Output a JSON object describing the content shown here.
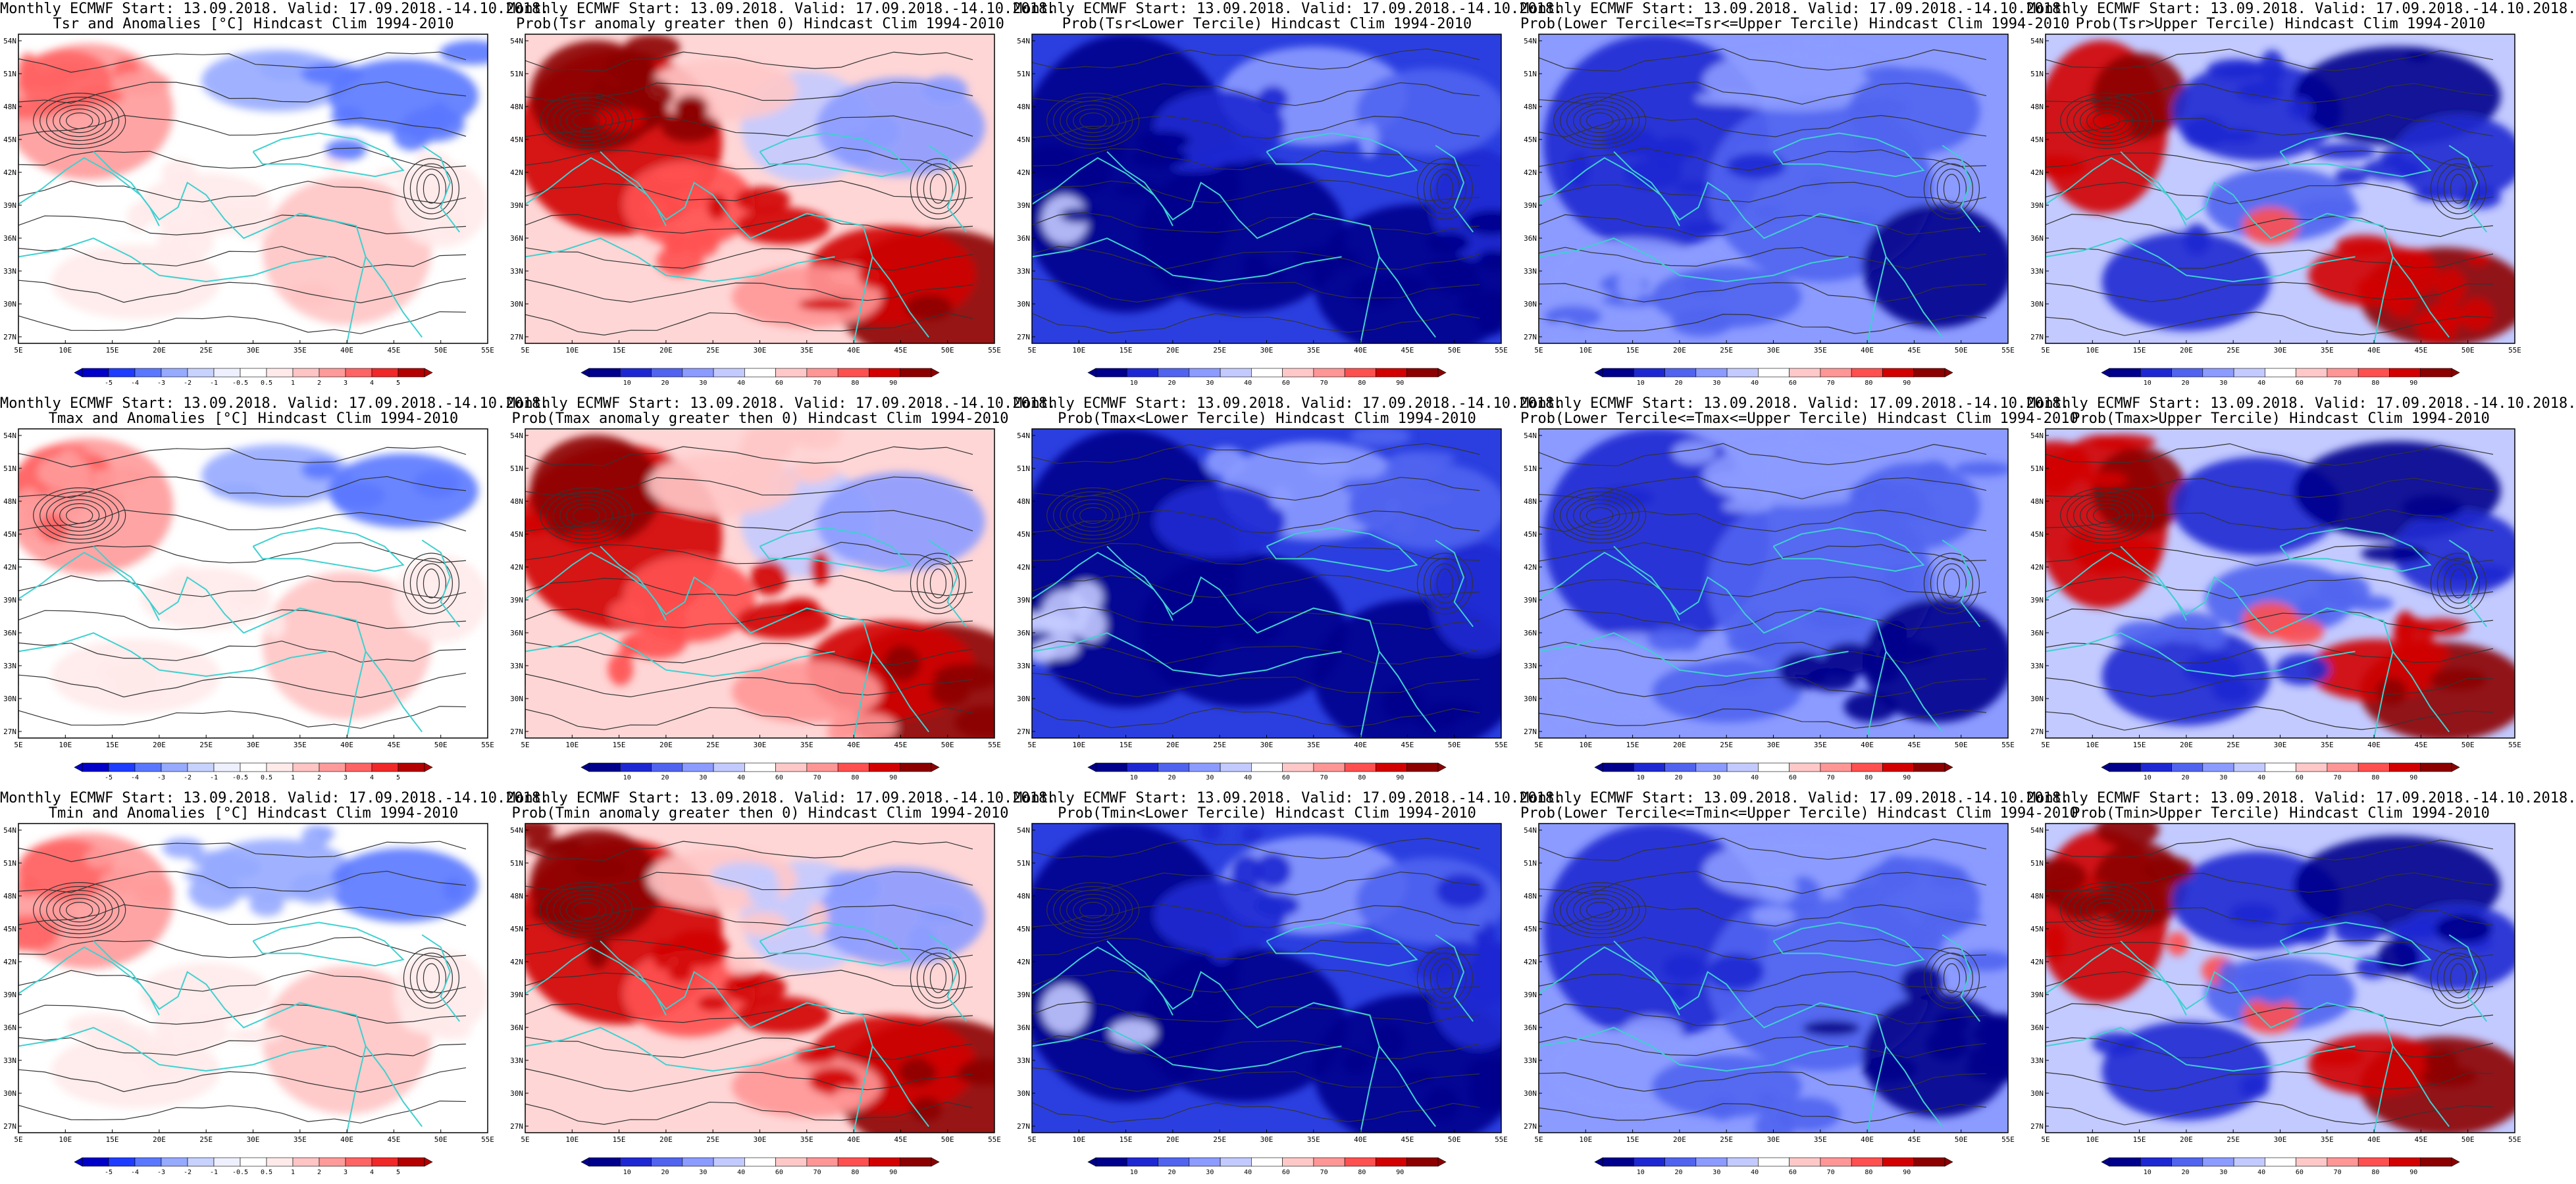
{
  "colors": {
    "coast": "#3fd0d0",
    "contour": "#333333",
    "anom_scale": [
      "#0000c8",
      "#1e3cff",
      "#5a78ff",
      "#96aaff",
      "#c8d2ff",
      "#eef0ff",
      "#ffffff",
      "#ffeaea",
      "#ffc4c4",
      "#ff9a9a",
      "#ff6464",
      "#f02828",
      "#b40000"
    ],
    "prob_scale": [
      "#00008c",
      "#1e28d2",
      "#5064f0",
      "#8c9bff",
      "#c3caff",
      "#ffffff",
      "#ffc8c8",
      "#ff9696",
      "#ff5050",
      "#d20000",
      "#8c0000"
    ]
  },
  "axes": {
    "lat_ticks": [
      "54N",
      "51N",
      "48N",
      "45N",
      "42N",
      "39N",
      "36N",
      "33N",
      "30N",
      "27N"
    ],
    "lon_ticks": [
      "5E",
      "10E",
      "15E",
      "20E",
      "25E",
      "30E",
      "35E",
      "40E",
      "45E",
      "50E",
      "55E"
    ]
  },
  "legends": {
    "anomaly": [
      "-5",
      "-4",
      "-3",
      "-2",
      "-1",
      "-0.5",
      "0.5",
      "1",
      "2",
      "3",
      "4",
      "5"
    ],
    "probability": [
      "10",
      "20",
      "30",
      "40",
      "60",
      "70",
      "80",
      "90"
    ]
  },
  "panels": [
    {
      "id": "r1c1",
      "kind": "anomaly",
      "dominant": "anom",
      "line1": "Monthly ECMWF Start: 13.09.2018. Valid: 17.09.2018.-14.10.2018.",
      "line2": "Tsr and Anomalies [°C] Hindcast Clim 1994-2010"
    },
    {
      "id": "r1c2",
      "kind": "probability",
      "dominant": "warm",
      "line1": "Monthly ECMWF Start: 13.09.2018. Valid: 17.09.2018.-14.10.2018.",
      "line2": "Prob(Tsr anomaly greater then 0) Hindcast Clim 1994-2010"
    },
    {
      "id": "r1c3",
      "kind": "probability",
      "dominant": "cold",
      "line1": "Monthly ECMWF Start: 13.09.2018. Valid: 17.09.2018.-14.10.2018.",
      "line2": "Prob(Tsr<Lower Tercile) Hindcast Clim 1994-2010"
    },
    {
      "id": "r1c4",
      "kind": "probability",
      "dominant": "mid",
      "line1": "Monthly ECMWF Start: 13.09.2018. Valid: 17.09.2018.-14.10.2018.",
      "line2": "Prob(Lower Tercile<=Tsr<=Upper Tercile) Hindcast Clim 1994-2010"
    },
    {
      "id": "r1c5",
      "kind": "probability",
      "dominant": "mixed",
      "line1": "Monthly ECMWF Start: 13.09.2018. Valid: 17.09.2018.-14.10.2018.",
      "line2": "Prob(Tsr>Upper Tercile) Hindcast Clim 1994-2010"
    },
    {
      "id": "r2c1",
      "kind": "anomaly",
      "dominant": "anom",
      "line1": "Monthly ECMWF Start: 13.09.2018. Valid: 17.09.2018.-14.10.2018.",
      "line2": "Tmax and Anomalies [°C] Hindcast Clim 1994-2010"
    },
    {
      "id": "r2c2",
      "kind": "probability",
      "dominant": "warm",
      "line1": "Monthly ECMWF Start: 13.09.2018. Valid: 17.09.2018.-14.10.2018.",
      "line2": "Prob(Tmax anomaly greater then 0) Hindcast Clim 1994-2010"
    },
    {
      "id": "r2c3",
      "kind": "probability",
      "dominant": "cold",
      "line1": "Monthly ECMWF Start: 13.09.2018. Valid: 17.09.2018.-14.10.2018.",
      "line2": "Prob(Tmax<Lower Tercile) Hindcast Clim 1994-2010"
    },
    {
      "id": "r2c4",
      "kind": "probability",
      "dominant": "mid",
      "line1": "Monthly ECMWF Start: 13.09.2018. Valid: 17.09.2018.-14.10.2018.",
      "line2": "Prob(Lower Tercile<=Tmax<=Upper Tercile) Hindcast Clim 1994-2010"
    },
    {
      "id": "r2c5",
      "kind": "probability",
      "dominant": "mixed",
      "line1": "Monthly ECMWF Start: 13.09.2018. Valid: 17.09.2018.-14.10.2018.",
      "line2": "Prob(Tmax>Upper Tercile) Hindcast Clim 1994-2010"
    },
    {
      "id": "r3c1",
      "kind": "anomaly",
      "dominant": "anom",
      "line1": "Monthly ECMWF Start: 13.09.2018. Valid: 17.09.2018.-14.10.2018.",
      "line2": "Tmin and Anomalies [°C] Hindcast Clim 1994-2010"
    },
    {
      "id": "r3c2",
      "kind": "probability",
      "dominant": "warm",
      "line1": "Monthly ECMWF Start: 13.09.2018. Valid: 17.09.2018.-14.10.2018.",
      "line2": "Prob(Tmin anomaly greater then 0) Hindcast Clim 1994-2010"
    },
    {
      "id": "r3c3",
      "kind": "probability",
      "dominant": "cold",
      "line1": "Monthly ECMWF Start: 13.09.2018. Valid: 17.09.2018.-14.10.2018.",
      "line2": "Prob(Tmin<Lower Tercile) Hindcast Clim 1994-2010"
    },
    {
      "id": "r3c4",
      "kind": "probability",
      "dominant": "mid",
      "line1": "Monthly ECMWF Start: 13.09.2018. Valid: 17.09.2018.-14.10.2018.",
      "line2": "Prob(Lower Tercile<=Tmin<=Upper Tercile) Hindcast Clim 1994-2010"
    },
    {
      "id": "r3c5",
      "kind": "probability",
      "dominant": "mixed",
      "line1": "Monthly ECMWF Start: 13.09.2018. Valid: 17.09.2018.-14.10.2018.",
      "line2": "Prob(Tmin>Upper Tercile) Hindcast Clim 1994-2010"
    }
  ]
}
